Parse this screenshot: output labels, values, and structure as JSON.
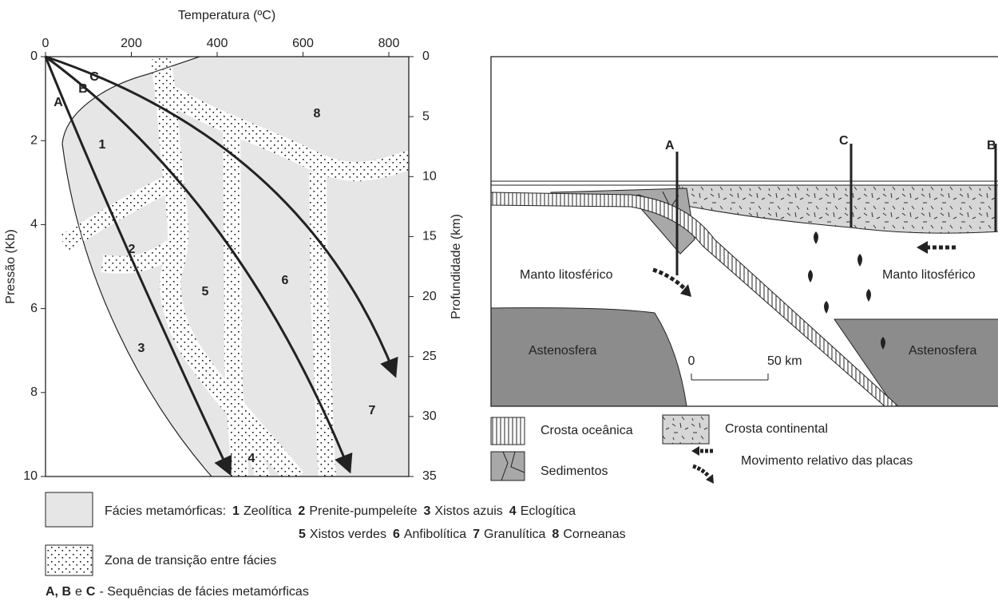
{
  "left_panel": {
    "x_axis_title": "Temperatura (ºC)",
    "x_ticks": [
      "0",
      "200",
      "400",
      "600",
      "800"
    ],
    "y_axis_title": "Pressão (Kb)",
    "y_ticks": [
      "0",
      "2",
      "4",
      "6",
      "8",
      "10"
    ],
    "y2_axis_title": "Profundidade (km)",
    "y2_ticks": [
      "0",
      "5",
      "10",
      "15",
      "20",
      "25",
      "30",
      "35"
    ],
    "facies_labels": [
      "1",
      "2",
      "3",
      "4",
      "5",
      "6",
      "7",
      "8"
    ],
    "path_labels": [
      "A",
      "B",
      "C"
    ]
  },
  "right_panel": {
    "section_labels": [
      "A",
      "C",
      "B"
    ],
    "mantle_left": "Manto litosférico",
    "mantle_right": "Manto litosférico",
    "asthenosphere_left": "Astenosfera",
    "asthenosphere_right": "Astenosfera",
    "scale_start": "0",
    "scale_end": "50 km"
  },
  "legend": {
    "oceanic_crust": "Crosta oceânica",
    "continental_crust": "Crosta continental",
    "sediments": "Sedimentos",
    "plate_motion": "Movimento relativo das placas"
  },
  "footer": {
    "facies_heading": "Fácies metamórficas:",
    "facies": [
      {
        "number": "1",
        "name": "Zeolítica"
      },
      {
        "number": "2",
        "name": "Prenite-pumpeleíte"
      },
      {
        "number": "3",
        "name": "Xistos azuis"
      },
      {
        "number": "4",
        "name": "Eclogítica"
      },
      {
        "number": "5",
        "name": "Xistos verdes"
      },
      {
        "number": "6",
        "name": "Anfibolítica"
      },
      {
        "number": "7",
        "name": "Granulítica"
      },
      {
        "number": "8",
        "name": "Corneanas"
      }
    ],
    "transition": "Zona de transição entre fácies",
    "sequences_letters_1": "A, B",
    "sequences_conjunction": "e",
    "sequences_letters_2": "C",
    "sequences_text": "- Sequências de fácies metamórficas"
  }
}
